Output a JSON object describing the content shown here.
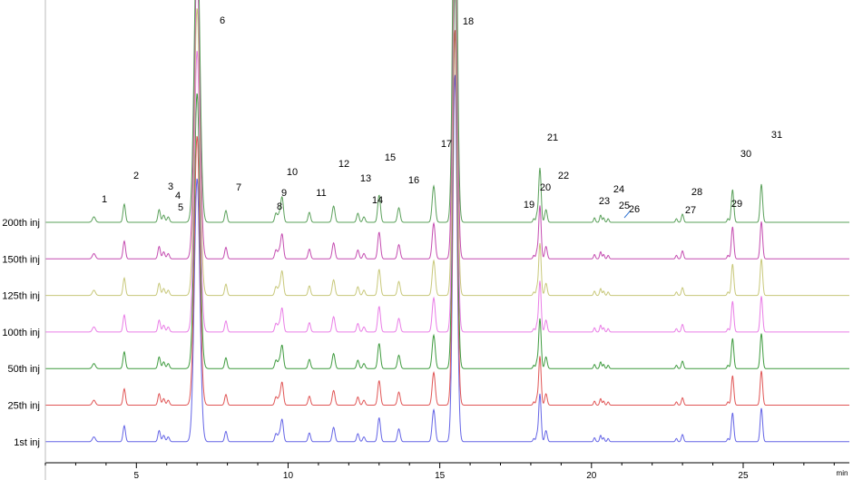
{
  "chart_data": {
    "type": "line",
    "xlabel": "min",
    "xlim": [
      2,
      28.5
    ],
    "xticks": [
      "5",
      "10",
      "15",
      "20",
      "25"
    ],
    "tick_values": [
      5,
      10,
      15,
      20,
      25
    ],
    "series": [
      {
        "name": "200th inj",
        "color": "#5aa05a"
      },
      {
        "name": "150th inj",
        "color": "#c44cb0"
      },
      {
        "name": "125th inj",
        "color": "#c8c87a"
      },
      {
        "name": "100th inj",
        "color": "#e97de6"
      },
      {
        "name": "50th inj",
        "color": "#3f9b3f"
      },
      {
        "name": "25th inj",
        "color": "#e05555"
      },
      {
        "name": "1st inj",
        "color": "#6464e6"
      }
    ],
    "peaks": [
      {
        "label": "1",
        "rt": 3.6
      },
      {
        "label": "2",
        "rt": 4.6
      },
      {
        "label": "3",
        "rt": 5.75
      },
      {
        "label": "4",
        "rt": 5.9
      },
      {
        "label": "5",
        "rt": 6.05
      },
      {
        "label": "6",
        "rt": 7.0
      },
      {
        "label": "7",
        "rt": 7.95
      },
      {
        "label": "8",
        "rt": 9.6
      },
      {
        "label": "9",
        "rt": 9.7
      },
      {
        "label": "10",
        "rt": 9.8
      },
      {
        "label": "11",
        "rt": 10.7
      },
      {
        "label": "12",
        "rt": 11.5
      },
      {
        "label": "13",
        "rt": 12.3
      },
      {
        "label": "14",
        "rt": 12.5
      },
      {
        "label": "15",
        "rt": 13.0
      },
      {
        "label": "16",
        "rt": 13.65
      },
      {
        "label": "17",
        "rt": 14.8
      },
      {
        "label": "18",
        "rt": 15.5
      },
      {
        "label": "19",
        "rt": 18.1
      },
      {
        "label": "20",
        "rt": 18.2
      },
      {
        "label": "21",
        "rt": 18.3
      },
      {
        "label": "22",
        "rt": 18.5
      },
      {
        "label": "23",
        "rt": 20.1
      },
      {
        "label": "24",
        "rt": 20.3
      },
      {
        "label": "25",
        "rt": 20.4
      },
      {
        "label": "26",
        "rt": 20.55
      },
      {
        "label": "27",
        "rt": 22.8
      },
      {
        "label": "28",
        "rt": 23.0
      },
      {
        "label": "29",
        "rt": 24.5
      },
      {
        "label": "30",
        "rt": 24.65
      },
      {
        "label": "31",
        "rt": 25.6
      }
    ]
  }
}
